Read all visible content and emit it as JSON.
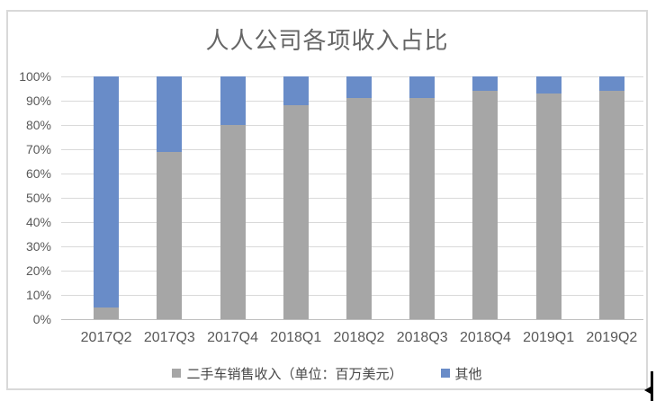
{
  "window": {
    "background": "#FFFFFF"
  },
  "chart": {
    "frame_border_color": "#D9D9D9",
    "grid_color": "#D9D9D9",
    "axis_line_color": "#BFBFBF",
    "axis_text_color": "#595959",
    "title_color": "#666666",
    "legend_text_color": "#474747"
  },
  "chart_data": {
    "type": "bar",
    "subtype": "stacked-percent",
    "title": "人人公司各项收入占比",
    "categories": [
      "2017Q2",
      "2017Q3",
      "2017Q4",
      "2018Q1",
      "2018Q2",
      "2018Q3",
      "2018Q4",
      "2019Q1",
      "2019Q2"
    ],
    "series": [
      {
        "name": "二手车销售收入（单位：百万美元）",
        "color": "#A6A6A6",
        "values": [
          5,
          69,
          80,
          88,
          91,
          91,
          94,
          93,
          94
        ]
      },
      {
        "name": "其他",
        "color": "#698CC8",
        "values": [
          95,
          31,
          20,
          12,
          9,
          9,
          6,
          7,
          6
        ]
      }
    ],
    "ylim": [
      0,
      100
    ],
    "yticks": [
      0,
      10,
      20,
      30,
      40,
      50,
      60,
      70,
      80,
      90,
      100
    ],
    "ytick_suffix": "%",
    "grid": true,
    "legend_position": "bottom"
  },
  "artifacts": {
    "text_cursor_visible": true
  }
}
